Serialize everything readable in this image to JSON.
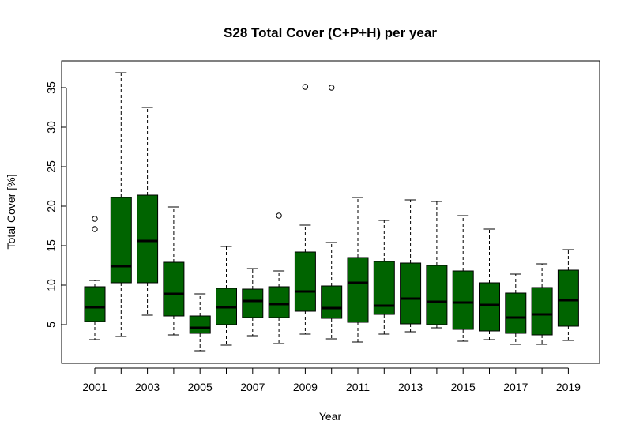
{
  "chart_data": {
    "type": "boxplot",
    "title": "S28 Total Cover (C+P+H) per year",
    "xlabel": "Year",
    "ylabel": "Total Cover [%]",
    "ylim": [
      0,
      38
    ],
    "y_ticks": [
      5,
      10,
      15,
      20,
      25,
      30,
      35
    ],
    "x_tick_labels": [
      "2001",
      "2003",
      "2005",
      "2007",
      "2009",
      "2011",
      "2013",
      "2015",
      "2017",
      "2019"
    ],
    "box_color": "#006400",
    "grid": false,
    "categories": [
      "2001",
      "2002",
      "2003",
      "2004",
      "2005",
      "2006",
      "2007",
      "2008",
      "2009",
      "2010",
      "2011",
      "2012",
      "2013",
      "2014",
      "2015",
      "2016",
      "2017",
      "2018",
      "2019"
    ],
    "boxes": [
      {
        "year": "2001",
        "whisker_low": 3.1,
        "q1": 5.4,
        "median": 7.2,
        "q3": 9.8,
        "whisker_high": 10.6,
        "outliers": [
          17.1,
          18.4
        ]
      },
      {
        "year": "2002",
        "whisker_low": 3.5,
        "q1": 10.3,
        "median": 12.4,
        "q3": 21.1,
        "whisker_high": 36.9,
        "outliers": []
      },
      {
        "year": "2003",
        "whisker_low": 6.2,
        "q1": 10.3,
        "median": 15.6,
        "q3": 21.4,
        "whisker_high": 32.5,
        "outliers": []
      },
      {
        "year": "2004",
        "whisker_low": 3.7,
        "q1": 6.1,
        "median": 8.9,
        "q3": 12.9,
        "whisker_high": 19.9,
        "outliers": []
      },
      {
        "year": "2005",
        "whisker_low": 1.7,
        "q1": 3.9,
        "median": 4.6,
        "q3": 6.1,
        "whisker_high": 8.9,
        "outliers": []
      },
      {
        "year": "2006",
        "whisker_low": 2.4,
        "q1": 5.0,
        "median": 7.2,
        "q3": 9.6,
        "whisker_high": 14.9,
        "outliers": []
      },
      {
        "year": "2007",
        "whisker_low": 3.6,
        "q1": 5.9,
        "median": 8.0,
        "q3": 9.5,
        "whisker_high": 12.1,
        "outliers": []
      },
      {
        "year": "2008",
        "whisker_low": 2.6,
        "q1": 5.9,
        "median": 7.6,
        "q3": 9.8,
        "whisker_high": 11.8,
        "outliers": [
          18.8
        ]
      },
      {
        "year": "2009",
        "whisker_low": 3.8,
        "q1": 6.7,
        "median": 9.2,
        "q3": 14.2,
        "whisker_high": 17.6,
        "outliers": [
          35.1
        ]
      },
      {
        "year": "2010",
        "whisker_low": 3.2,
        "q1": 5.8,
        "median": 7.1,
        "q3": 9.9,
        "whisker_high": 15.4,
        "outliers": [
          35.0
        ]
      },
      {
        "year": "2011",
        "whisker_low": 2.8,
        "q1": 5.3,
        "median": 10.3,
        "q3": 13.5,
        "whisker_high": 21.1,
        "outliers": []
      },
      {
        "year": "2012",
        "whisker_low": 3.8,
        "q1": 6.3,
        "median": 7.4,
        "q3": 13.0,
        "whisker_high": 18.2,
        "outliers": []
      },
      {
        "year": "2013",
        "whisker_low": 4.1,
        "q1": 5.1,
        "median": 8.3,
        "q3": 12.8,
        "whisker_high": 20.8,
        "outliers": []
      },
      {
        "year": "2014",
        "whisker_low": 4.6,
        "q1": 5.0,
        "median": 7.9,
        "q3": 12.5,
        "whisker_high": 20.6,
        "outliers": []
      },
      {
        "year": "2015",
        "whisker_low": 2.9,
        "q1": 4.4,
        "median": 7.8,
        "q3": 11.8,
        "whisker_high": 18.8,
        "outliers": []
      },
      {
        "year": "2016",
        "whisker_low": 3.1,
        "q1": 4.2,
        "median": 7.5,
        "q3": 10.3,
        "whisker_high": 17.1,
        "outliers": []
      },
      {
        "year": "2017",
        "whisker_low": 2.5,
        "q1": 3.9,
        "median": 5.9,
        "q3": 9.0,
        "whisker_high": 11.4,
        "outliers": []
      },
      {
        "year": "2018",
        "whisker_low": 2.5,
        "q1": 3.7,
        "median": 6.3,
        "q3": 9.7,
        "whisker_high": 12.7,
        "outliers": []
      },
      {
        "year": "2019",
        "whisker_low": 3.0,
        "q1": 4.8,
        "median": 8.1,
        "q3": 11.9,
        "whisker_high": 14.5,
        "outliers": []
      }
    ]
  }
}
